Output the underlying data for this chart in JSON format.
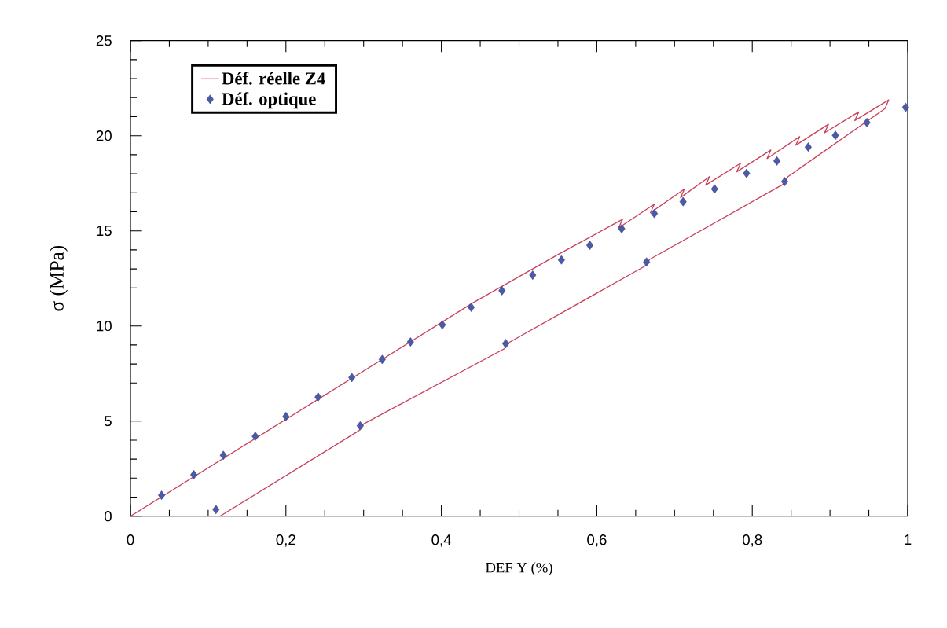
{
  "chart_data": {
    "type": "line",
    "xlabel": "DEF Y (%)",
    "ylabel": "σ (MPa)",
    "xlim": [
      0,
      1
    ],
    "ylim": [
      0,
      25
    ],
    "xticks": [
      0,
      {
        "value": 0.2,
        "label": "0,2"
      },
      {
        "value": 0.4,
        "label": "0,4"
      },
      {
        "value": 0.6,
        "label": "0,6"
      },
      {
        "value": 0.8,
        "label": "0,8"
      },
      1
    ],
    "yticks": [
      0,
      5,
      10,
      15,
      20,
      25
    ],
    "grid": false,
    "legend": "top left",
    "series": [
      {
        "name": "Déf. réelle Z4",
        "color": "#c8405a",
        "marker": "none",
        "line_style": "solid",
        "x": [
          0,
          0.44,
          0.55,
          0.633,
          0.628,
          0.674,
          0.669,
          0.7128,
          0.7078,
          0.745,
          0.74,
          0.785,
          0.78,
          0.824,
          0.819,
          0.861,
          0.856,
          0.898,
          0.893,
          0.937,
          0.932,
          0.9755,
          0.9707,
          0.846,
          0.84,
          0.668,
          0.662,
          0.488,
          0.481,
          0.3,
          0.294,
          0.1152
        ],
        "values": [
          0,
          11.2,
          13.75,
          15.6,
          15.15,
          16.4,
          15.95,
          17.2,
          16.75,
          17.85,
          17.4,
          18.55,
          18.1,
          19.25,
          18.8,
          19.95,
          19.5,
          20.6,
          20.15,
          21.25,
          20.8,
          21.88,
          21.42,
          17.85,
          17.45,
          13.5,
          13.15,
          9.15,
          8.8,
          4.85,
          4.5,
          0
        ]
      },
      {
        "name": "Déf. optique",
        "type": "scatter",
        "color": "#4a5aa8",
        "marker": "diamond",
        "x": [
          0.04,
          0.0815,
          0.1195,
          0.1606,
          0.2,
          0.2414,
          0.2848,
          0.3239,
          0.3603,
          0.4013,
          0.4384,
          0.478,
          0.5175,
          0.5545,
          0.591,
          0.632,
          0.674,
          0.711,
          0.7515,
          0.7926,
          0.8317,
          0.872,
          0.907,
          0.9475,
          0.9973,
          0.8417,
          0.664,
          0.4828,
          0.2956,
          0.11
        ],
        "values": [
          1.1,
          2.18,
          3.2,
          4.2,
          5.24,
          6.26,
          7.29,
          8.24,
          9.16,
          10.06,
          10.98,
          11.85,
          12.67,
          13.47,
          14.24,
          15.11,
          15.91,
          16.53,
          17.2,
          18.02,
          18.67,
          19.4,
          20.02,
          20.69,
          21.49,
          17.59,
          13.36,
          9.07,
          4.75,
          0.35
        ]
      }
    ]
  }
}
